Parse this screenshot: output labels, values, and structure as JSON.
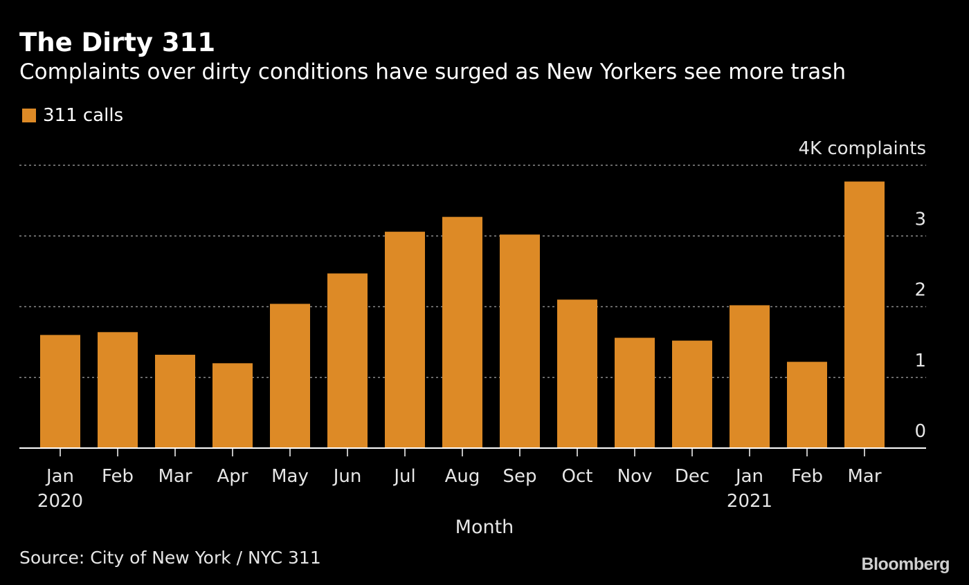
{
  "chart_data": {
    "type": "bar",
    "title": "The Dirty 311",
    "subtitle": "Complaints over dirty conditions have surged as New Yorkers see more trash",
    "xlabel": "Month",
    "ylabel": "",
    "series": [
      {
        "name": "311 calls",
        "color": "#dd8a26",
        "values": [
          1.6,
          1.64,
          1.32,
          1.2,
          2.04,
          2.47,
          3.06,
          3.27,
          3.02,
          2.1,
          1.56,
          1.52,
          2.02,
          1.22,
          3.77
        ]
      }
    ],
    "categories": [
      "Jan",
      "Feb",
      "Mar",
      "Apr",
      "May",
      "Jun",
      "Jul",
      "Aug",
      "Sep",
      "Oct",
      "Nov",
      "Dec",
      "Jan",
      "Feb",
      "Mar"
    ],
    "year_labels": [
      "2020",
      "",
      "",
      "",
      "",
      "",
      "",
      "",
      "",
      "",
      "",
      "",
      "2021",
      "",
      ""
    ],
    "ylim": [
      0,
      4
    ],
    "yticks": [
      {
        "value": 0,
        "label": "0"
      },
      {
        "value": 1,
        "label": "1"
      },
      {
        "value": 2,
        "label": "2"
      },
      {
        "value": 3,
        "label": "3"
      },
      {
        "value": 4,
        "label": "4K complaints"
      }
    ],
    "grid": true,
    "legend_position": "top-left"
  },
  "footer": {
    "source": "Source: City of New York / NYC 311",
    "brand": "Bloomberg"
  }
}
